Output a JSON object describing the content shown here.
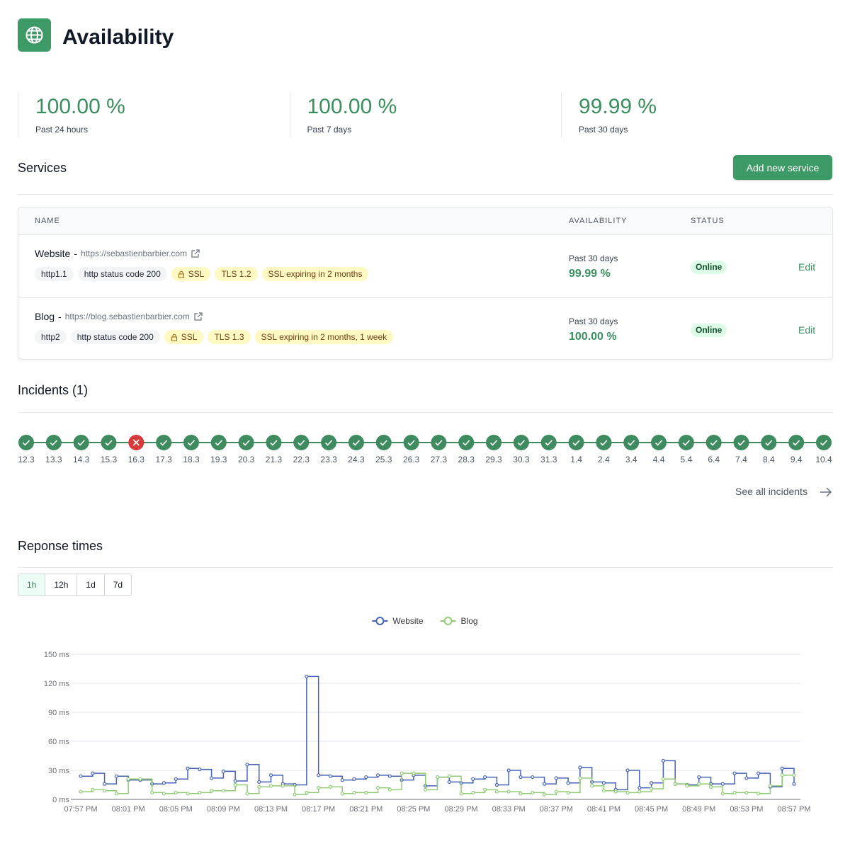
{
  "header": {
    "title": "Availability"
  },
  "stats": [
    {
      "value": "100.00 %",
      "label": "Past 24 hours"
    },
    {
      "value": "100.00 %",
      "label": "Past 7 days"
    },
    {
      "value": "99.99 %",
      "label": "Past 30 days"
    }
  ],
  "services": {
    "title": "Services",
    "button": "Add new service",
    "columns": [
      "NAME",
      "AVAILABILITY",
      "STATUS"
    ],
    "rows": [
      {
        "name": "Website",
        "separator": "-",
        "url": "https://sebastienbarbier.com",
        "tags": [
          {
            "text": "http1.1",
            "color": "grey"
          },
          {
            "text": "http status code 200",
            "color": "grey"
          },
          {
            "text": "SSL",
            "color": "yellow",
            "icon": "lock"
          },
          {
            "text": "TLS 1.2",
            "color": "yellow"
          },
          {
            "text": "SSL expiring in 2 months",
            "color": "yellow"
          }
        ],
        "availability_label": "Past 30 days",
        "availability": "99.99 %",
        "status": "Online",
        "action": "Edit"
      },
      {
        "name": "Blog",
        "separator": "-",
        "url": "https://blog.sebastienbarbier.com",
        "tags": [
          {
            "text": "http2",
            "color": "grey"
          },
          {
            "text": "http status code 200",
            "color": "grey"
          },
          {
            "text": "SSL",
            "color": "yellow",
            "icon": "lock"
          },
          {
            "text": "TLS 1.3",
            "color": "yellow"
          },
          {
            "text": "SSL expiring in 2 months, 1 week",
            "color": "yellow"
          }
        ],
        "availability_label": "Past 30 days",
        "availability": "100.00 %",
        "status": "Online",
        "action": "Edit"
      }
    ]
  },
  "incidents": {
    "title": "Incidents (1)",
    "link": "See all incidents",
    "days": [
      {
        "label": "12.3",
        "status": "ok"
      },
      {
        "label": "13.3",
        "status": "ok"
      },
      {
        "label": "14.3",
        "status": "ok"
      },
      {
        "label": "15.3",
        "status": "ok"
      },
      {
        "label": "16.3",
        "status": "failed"
      },
      {
        "label": "17.3",
        "status": "ok"
      },
      {
        "label": "18.3",
        "status": "ok"
      },
      {
        "label": "19.3",
        "status": "ok"
      },
      {
        "label": "20.3",
        "status": "ok"
      },
      {
        "label": "21.3",
        "status": "ok"
      },
      {
        "label": "22.3",
        "status": "ok"
      },
      {
        "label": "23.3",
        "status": "ok"
      },
      {
        "label": "24.3",
        "status": "ok"
      },
      {
        "label": "25.3",
        "status": "ok"
      },
      {
        "label": "26.3",
        "status": "ok"
      },
      {
        "label": "27.3",
        "status": "ok"
      },
      {
        "label": "28.3",
        "status": "ok"
      },
      {
        "label": "29.3",
        "status": "ok"
      },
      {
        "label": "30.3",
        "status": "ok"
      },
      {
        "label": "31.3",
        "status": "ok"
      },
      {
        "label": "1.4",
        "status": "ok"
      },
      {
        "label": "2.4",
        "status": "ok"
      },
      {
        "label": "3.4",
        "status": "ok"
      },
      {
        "label": "4.4",
        "status": "ok"
      },
      {
        "label": "5.4",
        "status": "ok"
      },
      {
        "label": "6.4",
        "status": "ok"
      },
      {
        "label": "7.4",
        "status": "ok"
      },
      {
        "label": "8.4",
        "status": "ok"
      },
      {
        "label": "9.4",
        "status": "ok"
      },
      {
        "label": "10.4",
        "status": "ok"
      }
    ]
  },
  "response_times": {
    "title": "Reponse times",
    "ranges": [
      "1h",
      "12h",
      "1d",
      "7d"
    ],
    "active_range": 0
  },
  "chart_data": {
    "type": "line",
    "step": true,
    "grid": true,
    "legend": "top",
    "categories": [
      "07:57 PM",
      null,
      null,
      null,
      "08:01 PM",
      null,
      null,
      null,
      "08:05 PM",
      null,
      null,
      null,
      "08:09 PM",
      null,
      null,
      null,
      "08:13 PM",
      null,
      null,
      null,
      "08:17 PM",
      null,
      null,
      null,
      "08:21 PM",
      null,
      null,
      null,
      "08:25 PM",
      null,
      null,
      null,
      "08:29 PM",
      null,
      null,
      null,
      "08:33 PM",
      null,
      null,
      null,
      "08:37 PM",
      null,
      null,
      null,
      "08:41 PM",
      null,
      null,
      null,
      "08:45 PM",
      null,
      null,
      null,
      "08:49 PM",
      null,
      null,
      null,
      "08:53 PM",
      null,
      null,
      null,
      "08:57 PM"
    ],
    "series": [
      {
        "name": "Website",
        "color": "#4562b8",
        "values": [
          24,
          27,
          16,
          24,
          20,
          20,
          16,
          17,
          21,
          32,
          31,
          22,
          29,
          19,
          36,
          18,
          25,
          16,
          15,
          127,
          25,
          24,
          20,
          21,
          23,
          25,
          24,
          20,
          25,
          14,
          23,
          18,
          17,
          21,
          23,
          15,
          30,
          23,
          23,
          16,
          22,
          17,
          33,
          18,
          17,
          10,
          30,
          12,
          17,
          40,
          16,
          15,
          23,
          16,
          16,
          27,
          22,
          27,
          13,
          32,
          16
        ]
      },
      {
        "name": "Blog",
        "color": "#91cc75",
        "values": [
          8,
          10,
          9,
          6,
          21,
          21,
          7,
          6,
          7,
          6,
          7,
          9,
          9,
          15,
          6,
          13,
          14,
          14,
          5,
          7,
          12,
          13,
          6,
          7,
          7,
          12,
          10,
          27,
          27,
          10,
          23,
          24,
          6,
          7,
          10,
          8,
          8,
          6,
          7,
          5,
          8,
          7,
          22,
          14,
          9,
          8,
          7,
          8,
          11,
          21,
          16,
          14,
          16,
          13,
          6,
          7,
          7,
          6,
          14,
          25,
          25
        ]
      }
    ],
    "ylim": [
      0,
      150
    ],
    "yticks": [
      {
        "value": 0,
        "label": "0 ms"
      },
      {
        "value": 30,
        "label": "30 ms"
      },
      {
        "value": 60,
        "label": "60 ms"
      },
      {
        "value": 90,
        "label": "90 ms"
      },
      {
        "value": 120,
        "label": "120 ms"
      },
      {
        "value": 150,
        "label": "150 ms"
      }
    ]
  }
}
